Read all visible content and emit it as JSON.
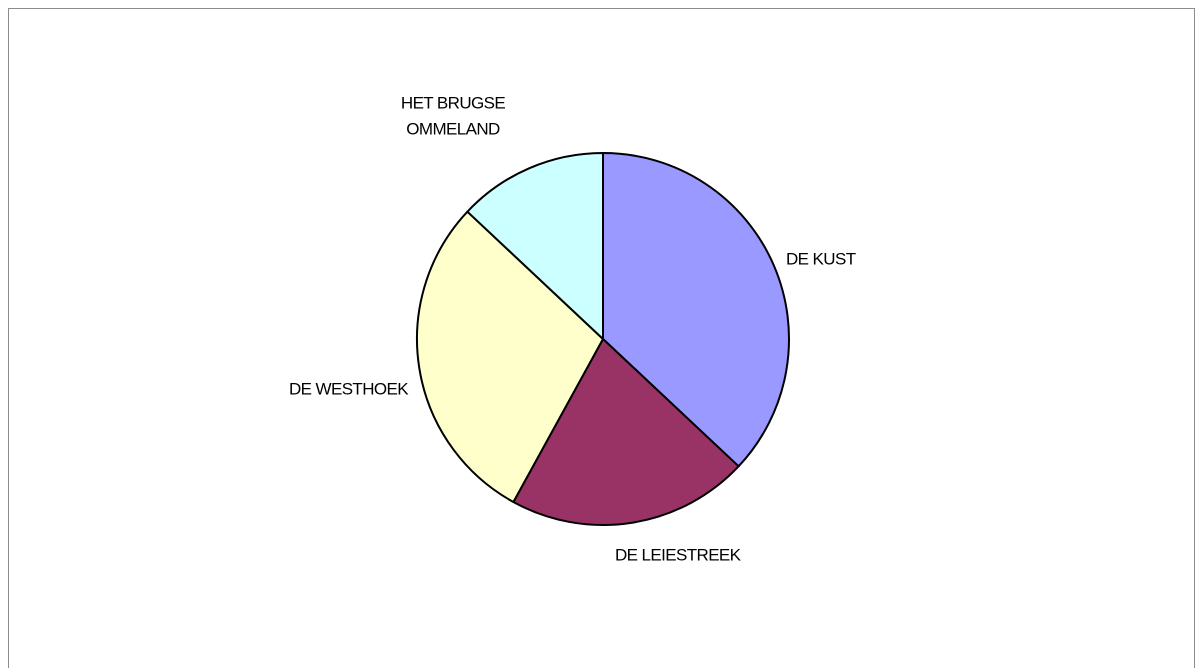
{
  "chart_data": {
    "type": "pie",
    "title": "",
    "categories": [
      "DE KUST",
      "DE LEIESTREEK",
      "DE WESTHOEK",
      "HET BRUGSE OMMELAND"
    ],
    "values": [
      37,
      21,
      29,
      13
    ],
    "colors": [
      "#9999ff",
      "#993366",
      "#ffffcc",
      "#ccffff"
    ],
    "label_lines": [
      [
        "DE KUST"
      ],
      [
        "DE LEIESTREEK"
      ],
      [
        "DE WESTHOEK"
      ],
      [
        "HET BRUGSE",
        "OMMELAND"
      ]
    ],
    "legend": "none"
  }
}
